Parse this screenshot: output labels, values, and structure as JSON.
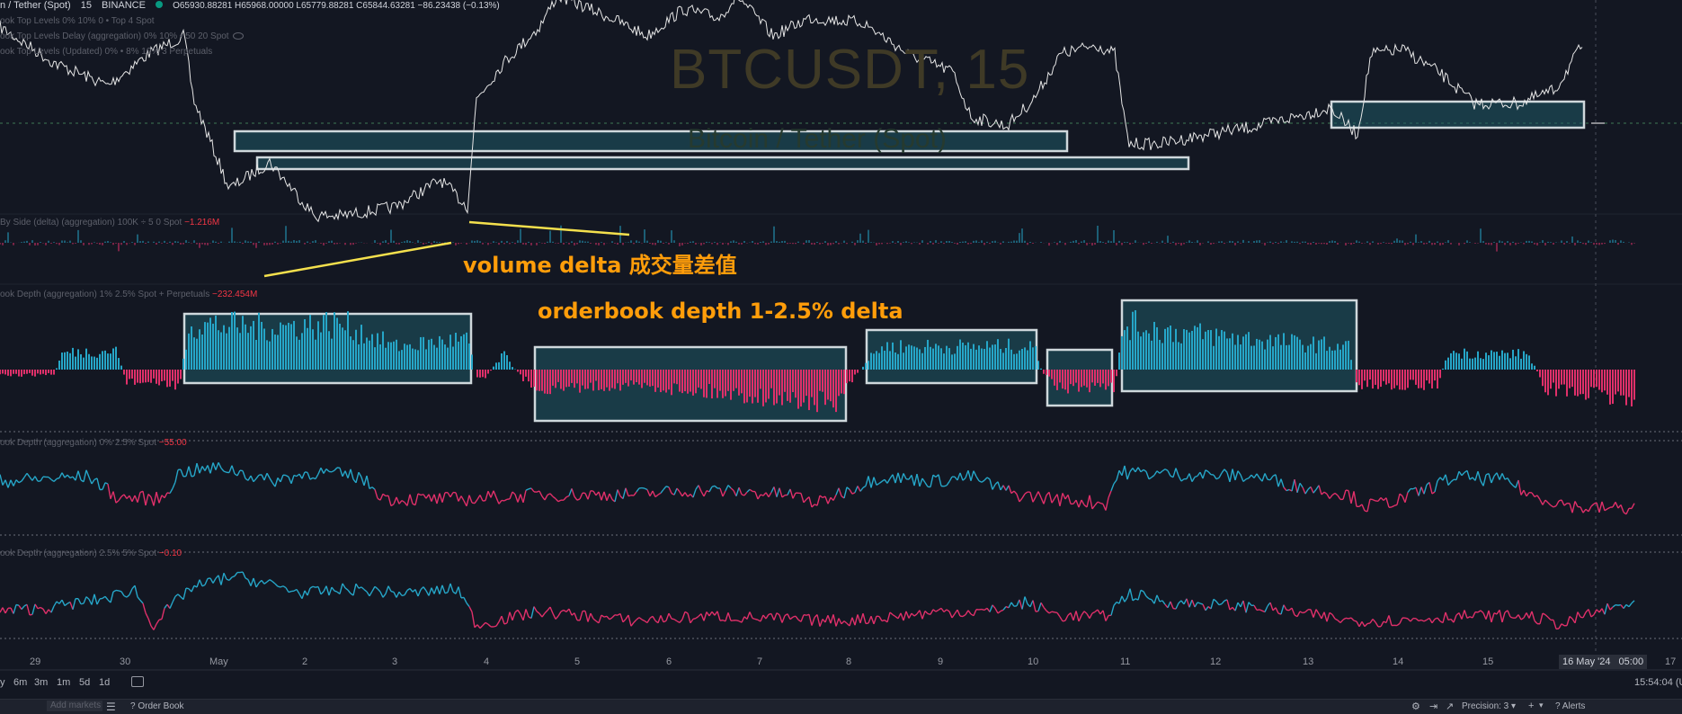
{
  "legend": {
    "symbol": "n / Tether (Spot)",
    "interval": "15",
    "exchange": "BINANCE",
    "ohlc": "O65930.88281 H65968.00000 L65779.88281 C65844.63281 −86.23438 (−0.13%)",
    "line2": "ook Top Levels 0% 10% 0 • Top 4 Spot",
    "line3": "ook Top Levels Delay (aggregation) 0% 10% • 50 20 Spot",
    "line4": "ook Top Levels (Updated) 0% • 8% 10% 3 Perpetuals"
  },
  "watermark": {
    "symbol": "BTCUSDT, 15",
    "name": "Bitcoin / Tether (Spot)"
  },
  "panes": {
    "delta": {
      "label": "By Side (delta) (aggregation) 100K ÷ 5 0 Spot",
      "value": "−1.216M"
    },
    "depth": {
      "label": "ook Depth (aggregation) 1% 2.5% Spot + Perpetuals",
      "value": "−232.454M"
    },
    "depth2": {
      "label": "ook Depth (aggregation) 0% 2.5% Spot",
      "value": "−55.00"
    },
    "depth3": {
      "label": "ook Depth (aggregation) 2.5% 5% Spot",
      "value": "−0.10"
    }
  },
  "annotations": {
    "volume_delta": "volume delta 成交量差值",
    "orderbook_depth": "orderbook depth 1-2.5% delta"
  },
  "time_axis": [
    "29",
    "30",
    "May",
    "2",
    "3",
    "4",
    "5",
    "6",
    "7",
    "8",
    "9",
    "10",
    "11",
    "12",
    "13",
    "14",
    "15",
    "17"
  ],
  "cursor_date": "16 May '24",
  "cursor_time": "05:00",
  "ranges": [
    "y",
    "6m",
    "3m",
    "1m",
    "5d",
    "1d"
  ],
  "clock": "15:54:04 (U",
  "bottom_bar": {
    "add_markets": "Add markets",
    "order_book": "Order Book",
    "precision": "Precision: 3",
    "alerts": "Alerts"
  },
  "colors": {
    "background": "#131722",
    "up": "#26a6c8",
    "down": "#e0306a",
    "price": "#e6e6e6",
    "box_fill": "#1f5a66",
    "box_stroke": "#cfd8dc",
    "annotation": "#ff9d0a",
    "trendline": "#f4e04d"
  }
}
